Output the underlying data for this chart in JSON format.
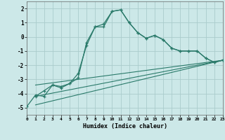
{
  "xlabel": "Humidex (Indice chaleur)",
  "background_color": "#cce8e8",
  "grid_color": "#aacccc",
  "line_color": "#2a7a6a",
  "xlim": [
    0,
    23
  ],
  "ylim": [
    -5.5,
    2.5
  ],
  "yticks": [
    -5,
    -4,
    -3,
    -2,
    -1,
    0,
    1,
    2
  ],
  "xticks": [
    0,
    1,
    2,
    3,
    4,
    5,
    6,
    7,
    8,
    9,
    10,
    11,
    12,
    13,
    14,
    15,
    16,
    17,
    18,
    19,
    20,
    21,
    22,
    23
  ],
  "series1_x": [
    0,
    1,
    2,
    3,
    4,
    5,
    6,
    7,
    8,
    9,
    10,
    11,
    12,
    13,
    14,
    15,
    16,
    17,
    18,
    19,
    20,
    21,
    22,
    23
  ],
  "series1_y": [
    -4.9,
    -4.1,
    -4.2,
    -3.4,
    -3.6,
    -3.3,
    -2.6,
    -0.6,
    0.7,
    0.7,
    1.8,
    1.9,
    1.0,
    0.3,
    -0.1,
    0.1,
    -0.2,
    -0.8,
    -1.0,
    -1.0,
    -1.0,
    -1.5,
    -1.8,
    -1.65
  ],
  "series2_x": [
    1,
    2,
    3,
    4,
    5,
    6,
    7,
    8,
    9,
    10,
    11,
    12,
    13,
    14,
    15,
    16,
    17,
    18,
    19,
    20,
    21,
    22,
    23
  ],
  "series2_y": [
    -4.2,
    -3.8,
    -3.4,
    -3.5,
    -3.3,
    -2.9,
    -0.4,
    0.7,
    0.9,
    1.8,
    1.9,
    1.0,
    0.3,
    -0.1,
    0.1,
    -0.2,
    -0.8,
    -1.0,
    -1.0,
    -1.0,
    -1.5,
    -1.8,
    -1.65
  ],
  "series3_x": [
    1,
    23
  ],
  "series3_y": [
    -4.2,
    -1.65
  ],
  "series4_x": [
    1,
    23
  ],
  "series4_y": [
    -3.4,
    -1.65
  ],
  "series5_x": [
    1,
    23
  ],
  "series5_y": [
    -4.8,
    -1.65
  ]
}
